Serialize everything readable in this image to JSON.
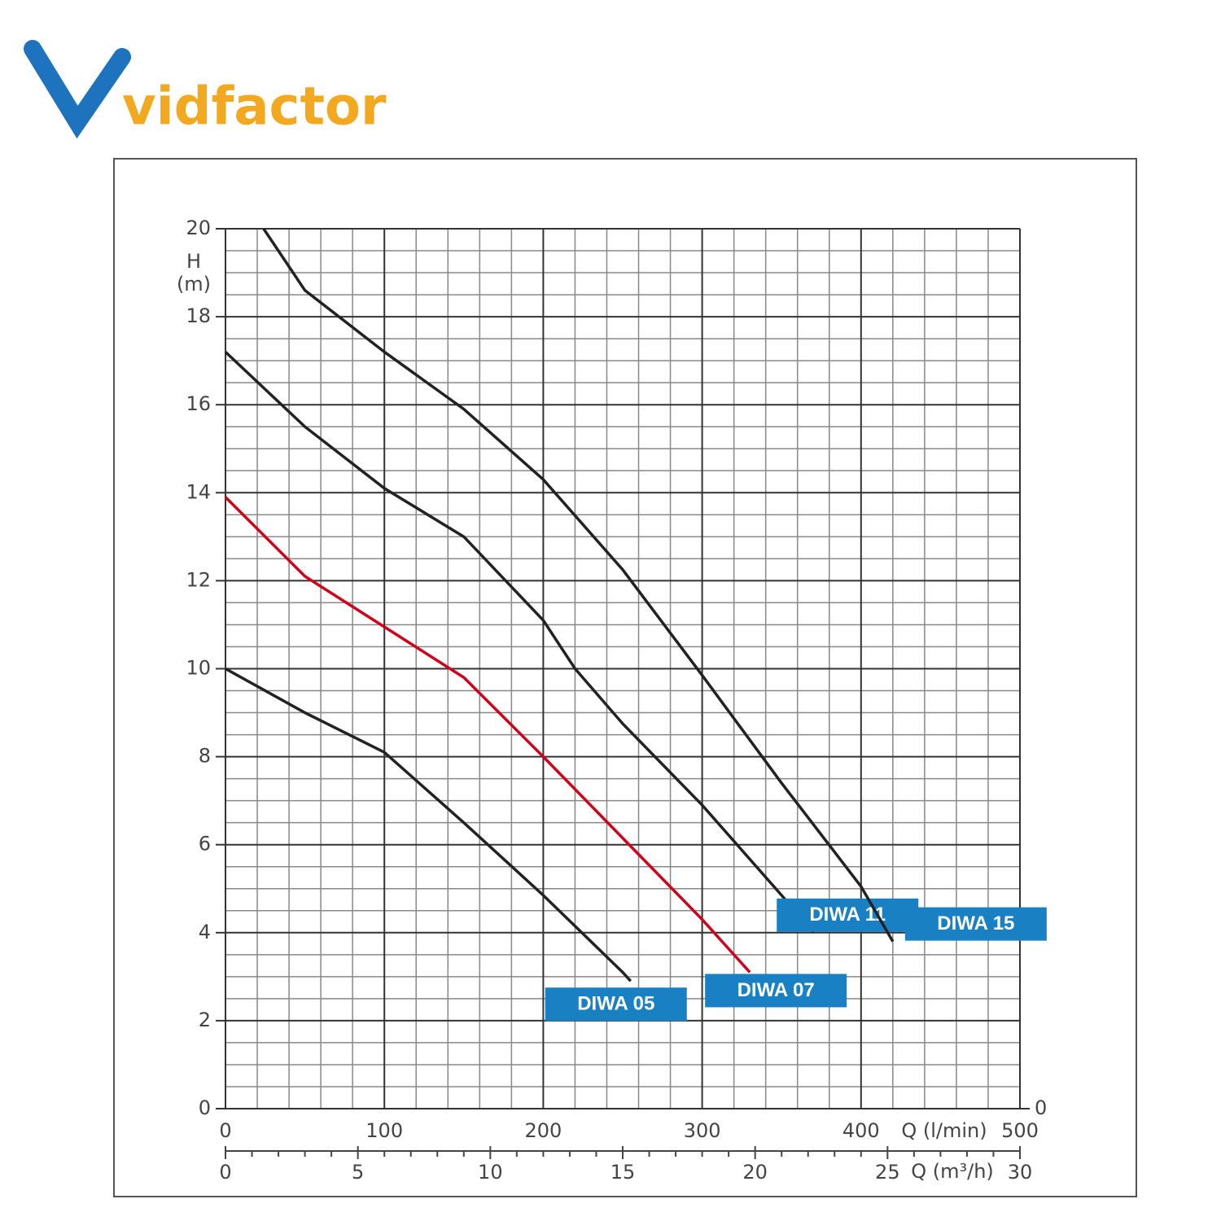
{
  "logo": "vidfactor",
  "chart_data": {
    "type": "line",
    "ylabel": "H",
    "yunit": "(m)",
    "xlabel": "Q (l/min)",
    "x2label": "Q (m³/h)",
    "xlim": [
      0,
      500
    ],
    "xticks": [
      0,
      100,
      200,
      300,
      400,
      500
    ],
    "x2lim": [
      0,
      30
    ],
    "x2ticks": [
      0,
      5,
      10,
      15,
      20,
      25,
      30
    ],
    "ylim": [
      0,
      20
    ],
    "yticks": [
      0,
      2,
      4,
      6,
      8,
      10,
      12,
      14,
      16,
      18,
      20
    ],
    "y2lim": [
      0,
      20
    ],
    "y2ticks": [
      0
    ],
    "grid": true,
    "series": [
      {
        "name": "DIWA 05",
        "color": "#222222",
        "x": [
          0,
          50,
          100,
          150,
          200,
          250,
          255
        ],
        "values": [
          10,
          9.0,
          8.1,
          6.5,
          4.85,
          3.1,
          2.9
        ]
      },
      {
        "name": "DIWA 07",
        "color": "#d0021b",
        "x": [
          0,
          50,
          100,
          150,
          200,
          250,
          300,
          330
        ],
        "values": [
          13.9,
          12.1,
          10.95,
          9.8,
          8.0,
          6.15,
          4.3,
          3.1
        ]
      },
      {
        "name": "DIWA 11",
        "color": "#222222",
        "x": [
          0,
          50,
          100,
          150,
          200,
          220,
          250,
          300,
          350,
          370
        ],
        "values": [
          17.2,
          15.5,
          14.1,
          13.0,
          11.1,
          10.0,
          8.75,
          6.9,
          4.85,
          4.0
        ]
      },
      {
        "name": "DIWA 15",
        "color": "#222222",
        "x": [
          24,
          50,
          100,
          150,
          200,
          250,
          300,
          350,
          400,
          420
        ],
        "values": [
          20,
          18.6,
          17.2,
          15.9,
          14.3,
          12.25,
          9.85,
          7.4,
          5.05,
          3.8
        ]
      }
    ]
  }
}
